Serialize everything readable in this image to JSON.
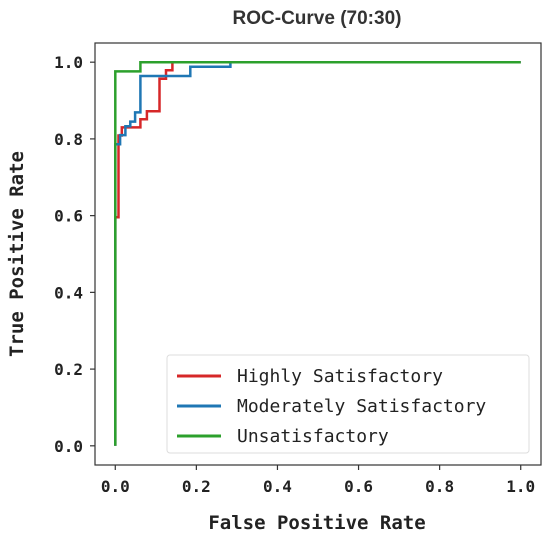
{
  "chart_data": {
    "type": "line",
    "title": "ROC-Curve (70:30)",
    "xlabel": "False Positive Rate",
    "ylabel": "True Positive Rate",
    "xlim": [
      -0.05,
      1.05
    ],
    "ylim": [
      -0.05,
      1.05
    ],
    "xticks": [
      "0.0",
      "0.2",
      "0.4",
      "0.6",
      "0.8",
      "1.0"
    ],
    "yticks": [
      "0.0",
      "0.2",
      "0.4",
      "0.6",
      "0.8",
      "1.0"
    ],
    "grid": false,
    "legend_position": "lower-right",
    "series": [
      {
        "name": "Highly Satisfactory",
        "color": "#d62728",
        "x": [
          0.0,
          0.0,
          0.008,
          0.008,
          0.016,
          0.016,
          0.031,
          0.031,
          0.062,
          0.062,
          0.078,
          0.078,
          0.094,
          0.094,
          0.109,
          0.109,
          0.125,
          0.125,
          0.141,
          0.141,
          1.0
        ],
        "y": [
          0.0,
          0.596,
          0.596,
          0.809,
          0.809,
          0.83,
          0.83,
          0.83,
          0.83,
          0.851,
          0.851,
          0.872,
          0.872,
          0.872,
          0.872,
          0.957,
          0.957,
          0.979,
          0.979,
          1.0,
          1.0
        ]
      },
      {
        "name": "Moderately Satisfactory",
        "color": "#1f77b4",
        "x": [
          0.0,
          0.0,
          0.012,
          0.012,
          0.025,
          0.025,
          0.037,
          0.037,
          0.049,
          0.049,
          0.062,
          0.062,
          0.185,
          0.185,
          0.284,
          0.284,
          1.0
        ],
        "y": [
          0.0,
          0.786,
          0.786,
          0.81,
          0.81,
          0.833,
          0.833,
          0.845,
          0.845,
          0.869,
          0.869,
          0.964,
          0.964,
          0.988,
          0.988,
          1.0,
          1.0
        ]
      },
      {
        "name": "Unsatisfactory",
        "color": "#2ca02c",
        "x": [
          0.0,
          0.0,
          0.062,
          0.062,
          1.0
        ],
        "y": [
          0.0,
          0.976,
          0.976,
          1.0,
          1.0
        ]
      }
    ]
  }
}
